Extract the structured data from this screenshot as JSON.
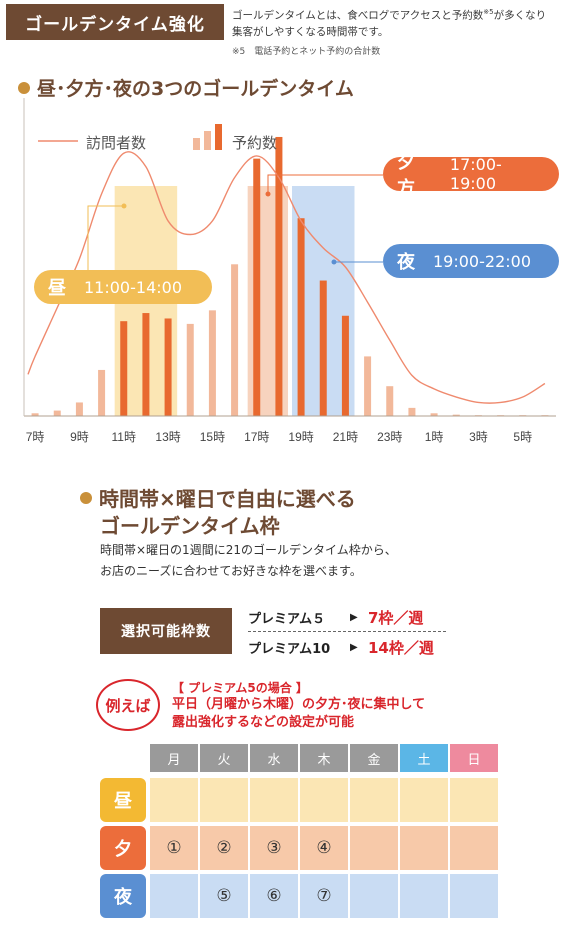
{
  "header": {
    "tab": "ゴールデンタイム強化",
    "desc_line1": "ゴールデンタイムとは、食べログでアクセスと予約数",
    "desc_sup": "※5",
    "desc_line1b": "が多くなり",
    "desc_line2": "集客がしやすくなる時間帯です。",
    "note": "※5　電話予約とネット予約の合計数"
  },
  "section1": {
    "title": "昼･夕方･夜の3つのゴールデンタイム"
  },
  "callouts": {
    "hiru": {
      "name": "昼",
      "time": "11:00-14:00",
      "color": "#f2be56"
    },
    "yugata": {
      "name": "夕方",
      "time": "17:00-19:00",
      "color": "#ec6d3b"
    },
    "yoru": {
      "name": "夜",
      "time": "19:00-22:00",
      "color": "#5a8fd2"
    }
  },
  "chart_data": {
    "type": "bar",
    "legend": {
      "line": "訪問者数",
      "bar": "予約数",
      "placement": "top-left"
    },
    "x": [
      "7時",
      "8時",
      "9時",
      "10時",
      "11時",
      "12時",
      "13時",
      "14時",
      "15時",
      "16時",
      "17時",
      "18時",
      "19時",
      "20時",
      "21時",
      "22時",
      "23時",
      "0時",
      "1時",
      "2時",
      "3時",
      "4時",
      "5時",
      "6時"
    ],
    "tick_labels": [
      "7時",
      "9時",
      "11時",
      "13時",
      "15時",
      "17時",
      "19時",
      "21時",
      "23時",
      "1時",
      "3時",
      "5時"
    ],
    "series": [
      {
        "name": "予約数",
        "kind": "bar",
        "values": [
          1,
          2,
          5,
          17,
          35,
          38,
          36,
          34,
          39,
          56,
          95,
          103,
          73,
          50,
          37,
          22,
          11,
          3,
          1,
          0.5,
          0.3,
          0.3,
          0.3,
          0.3
        ]
      },
      {
        "name": "訪問者数",
        "kind": "line",
        "values": [
          22,
          40,
          58,
          82,
          97,
          92,
          72,
          67,
          72,
          88,
          96,
          88,
          72,
          62,
          55,
          42,
          28,
          15,
          10,
          7,
          5,
          5,
          7,
          12
        ]
      }
    ],
    "highlight_bands": [
      {
        "label": "昼",
        "from": "11時",
        "to": "13時",
        "color": "#fbe6b4"
      },
      {
        "label": "夕方",
        "from": "17時",
        "to": "18時",
        "color": "#f7d3be"
      },
      {
        "label": "夜",
        "from": "19時",
        "to": "21時",
        "color": "#c9dcf3"
      }
    ],
    "emphasized_bars": [
      "11時",
      "12時",
      "13時",
      "17時",
      "18時",
      "19時",
      "20時",
      "21時"
    ],
    "colors": {
      "bar": "#f2b89a",
      "bar_emphasized": "#e8692f",
      "line": "#ef8a6e"
    },
    "ylim": [
      0,
      110
    ],
    "grid": false
  },
  "section2": {
    "title_line1": "時間帯×曜日で自由に選べる",
    "title_line2": "ゴールデンタイム枠",
    "desc_line1": "時間帯×曜日の1週間に21のゴールデンタイム枠から、",
    "desc_line2": "お店のニーズに合わせてお好きな枠を選べます。",
    "select_label": "選択可能枠数",
    "plans": [
      {
        "name": "プレミアム５",
        "value": "7枠／週"
      },
      {
        "name": "プレミアム10",
        "value": "14枠／週"
      }
    ],
    "example_badge": "例えば",
    "example_title": "【 プレミアム5の場合 】",
    "example_line1": "平日（月曜から木曜）の夕方･夜に集中して",
    "example_line2": "露出強化するなどの設定が可能"
  },
  "schedule": {
    "days": [
      {
        "label": "月",
        "color": "#9a9a9a"
      },
      {
        "label": "火",
        "color": "#9a9a9a"
      },
      {
        "label": "水",
        "color": "#9a9a9a"
      },
      {
        "label": "木",
        "color": "#9a9a9a"
      },
      {
        "label": "金",
        "color": "#9a9a9a"
      },
      {
        "label": "土",
        "color": "#5bb6e6"
      },
      {
        "label": "日",
        "color": "#ee8a9e"
      }
    ],
    "rows": [
      {
        "label": "昼",
        "label_color": "#f3b933",
        "cell_color": "#fbe6b4",
        "cells": [
          "",
          "",
          "",
          "",
          "",
          "",
          ""
        ]
      },
      {
        "label": "夕",
        "label_color": "#ec6d3b",
        "cell_color": "#f7c9a9",
        "cells": [
          "①",
          "②",
          "③",
          "④",
          "",
          "",
          ""
        ]
      },
      {
        "label": "夜",
        "label_color": "#5a8fd2",
        "cell_color": "#c9dcf3",
        "cells": [
          "",
          "⑤",
          "⑥",
          "⑦",
          "",
          "",
          ""
        ]
      }
    ]
  }
}
